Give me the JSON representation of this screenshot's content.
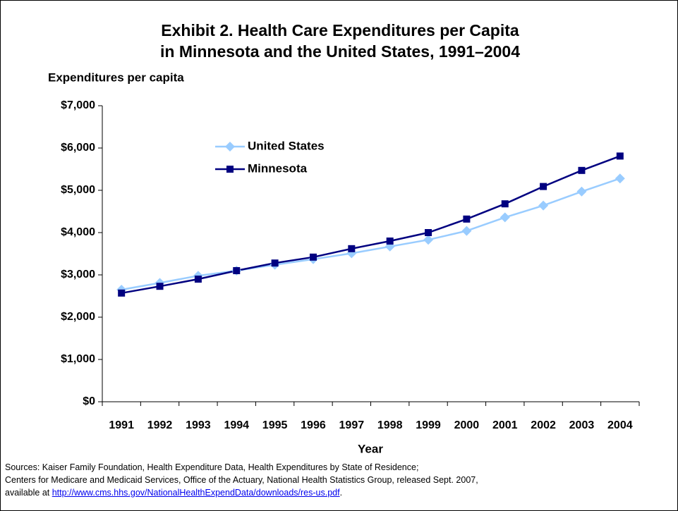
{
  "chart_data": {
    "type": "line",
    "title": [
      "Exhibit 2. Health Care Expenditures per Capita",
      "in Minnesota and the United States, 1991–2004"
    ],
    "ylabel": "Expenditures per capita",
    "xlabel": "Year",
    "categories": [
      "1991",
      "1992",
      "1993",
      "1994",
      "1995",
      "1996",
      "1997",
      "1998",
      "1999",
      "2000",
      "2001",
      "2002",
      "2003",
      "2004"
    ],
    "series": [
      {
        "name": "United States",
        "color": "#99ccff",
        "marker": "diamond",
        "values": [
          2650,
          2810,
          2980,
          3100,
          3240,
          3370,
          3510,
          3670,
          3830,
          4040,
          4360,
          4640,
          4970,
          5280
        ]
      },
      {
        "name": "Minnesota",
        "color": "#000080",
        "marker": "square",
        "values": [
          2570,
          2730,
          2900,
          3100,
          3280,
          3420,
          3620,
          3800,
          4000,
          4320,
          4680,
          5090,
          5470,
          5810
        ]
      }
    ],
    "ylim": [
      0,
      7000
    ],
    "yticks": [
      {
        "value": 0,
        "label": "$0"
      },
      {
        "value": 1000,
        "label": "$1,000"
      },
      {
        "value": 2000,
        "label": "$2,000"
      },
      {
        "value": 3000,
        "label": "$3,000"
      },
      {
        "value": 4000,
        "label": "$4,000"
      },
      {
        "value": 5000,
        "label": "$5,000"
      },
      {
        "value": 6000,
        "label": "$6,000"
      },
      {
        "value": 7000,
        "label": "$7,000"
      }
    ],
    "grid": false,
    "legend": "upper left",
    "sources": [
      "Sources: Kaiser Family Foundation, Health Expenditure Data, Health Expenditures by State of Residence;",
      "Centers for Medicare and Medicaid Services, Office of the Actuary, National Health Statistics Group, released Sept. 2007,"
    ],
    "source_link": {
      "prefix": "available at",
      "url": "http://www.cms.hhs.gov/NationalHealthExpendData/downloads/res-us.pdf",
      "suffix": "."
    }
  }
}
